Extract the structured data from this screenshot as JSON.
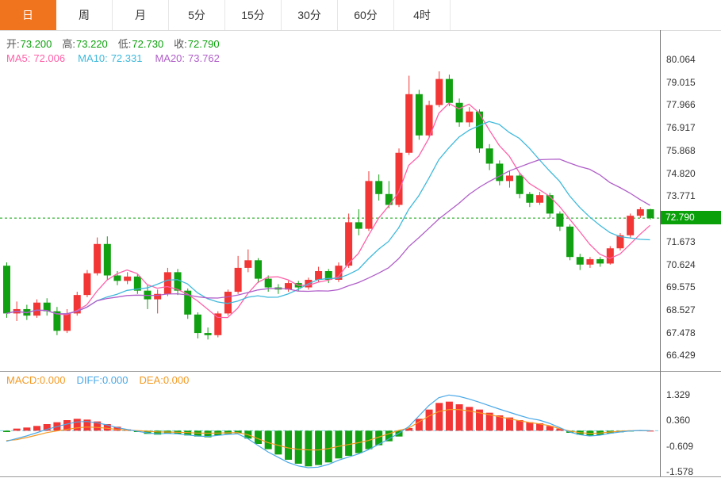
{
  "tabs": [
    {
      "label": "日",
      "active": true
    },
    {
      "label": "周",
      "active": false
    },
    {
      "label": "月",
      "active": false
    },
    {
      "label": "5分",
      "active": false
    },
    {
      "label": "15分",
      "active": false
    },
    {
      "label": "30分",
      "active": false
    },
    {
      "label": "60分",
      "active": false
    },
    {
      "label": "4时",
      "active": false
    }
  ],
  "ohlc_header": {
    "open_label": "开:",
    "open_value": "73.200",
    "high_label": "高:",
    "high_value": "73.220",
    "low_label": "低:",
    "low_value": "72.730",
    "close_label": "收:",
    "close_value": "72.790"
  },
  "ma_header": {
    "ma5_label": "MA5:",
    "ma5_value": "72.006",
    "ma10_label": "MA10:",
    "ma10_value": "72.331",
    "ma20_label": "MA20:",
    "ma20_value": "73.762"
  },
  "macd_header": {
    "macd_label": "MACD:",
    "macd_value": "0.000",
    "diff_label": "DIFF:",
    "diff_value": "0.000",
    "dea_label": "DEA:",
    "dea_value": "0.000"
  },
  "current_price_label": "72.790",
  "colors": {
    "accent_orange": "#f0731d",
    "up_red": "#f23535",
    "down_green": "#11a011",
    "price_line_green": "#0aa00a",
    "ma5_pink": "#ff60a8",
    "ma10_cyan": "#3fb9dc",
    "ma20_purple": "#b05fc9",
    "diff_blue": "#4aa8e8",
    "dea_orange": "#f59a23",
    "macd_zero_cyan": "#7fd4e8",
    "axis_text": "#333333"
  },
  "chart_data": [
    {
      "type": "candlestick",
      "timeframe": "日",
      "ylim": [
        65.75,
        81.45
      ],
      "y_ticks": [
        80.064,
        79.015,
        77.966,
        76.917,
        75.868,
        74.82,
        73.771,
        71.673,
        70.624,
        69.575,
        68.527,
        67.478,
        66.429
      ],
      "current_price": 72.79,
      "last_candle": {
        "open": 73.2,
        "high": 73.22,
        "low": 72.73,
        "close": 72.79
      },
      "overlays": [
        {
          "name": "MA5",
          "period": 5,
          "value": 72.006
        },
        {
          "name": "MA10",
          "period": 10,
          "value": 72.331
        },
        {
          "name": "MA20",
          "period": 20,
          "value": 73.762
        }
      ],
      "ohlc": [
        [
          70.6,
          70.75,
          68.2,
          68.4
        ],
        [
          68.4,
          68.95,
          68.05,
          68.6
        ],
        [
          68.6,
          68.8,
          68.1,
          68.3
        ],
        [
          68.3,
          69.05,
          68.2,
          68.9
        ],
        [
          68.9,
          69.1,
          68.3,
          68.5
        ],
        [
          68.5,
          68.7,
          67.4,
          67.6
        ],
        [
          67.6,
          68.6,
          67.5,
          68.4
        ],
        [
          68.4,
          69.4,
          68.3,
          69.25
        ],
        [
          69.25,
          70.4,
          69.15,
          70.25
        ],
        [
          70.25,
          71.9,
          70.15,
          71.6
        ],
        [
          71.6,
          71.95,
          69.95,
          70.15
        ],
        [
          70.15,
          70.35,
          69.7,
          69.9
        ],
        [
          69.9,
          70.3,
          69.75,
          70.1
        ],
        [
          70.1,
          70.2,
          69.3,
          69.45
        ],
        [
          69.45,
          69.7,
          68.6,
          69.05
        ],
        [
          69.05,
          69.5,
          68.4,
          69.3
        ],
        [
          69.3,
          70.5,
          69.2,
          70.3
        ],
        [
          70.3,
          70.45,
          69.25,
          69.45
        ],
        [
          69.45,
          69.55,
          68.15,
          68.35
        ],
        [
          68.35,
          68.45,
          67.25,
          67.5
        ],
        [
          67.5,
          67.75,
          67.2,
          67.4
        ],
        [
          67.4,
          68.5,
          67.3,
          68.4
        ],
        [
          68.4,
          69.5,
          68.3,
          69.4
        ],
        [
          69.4,
          71.05,
          69.3,
          70.5
        ],
        [
          70.5,
          71.35,
          70.3,
          70.85
        ],
        [
          70.85,
          70.95,
          69.8,
          70.0
        ],
        [
          70.0,
          70.15,
          69.4,
          69.6
        ],
        [
          69.6,
          69.75,
          69.3,
          69.5
        ],
        [
          69.5,
          69.9,
          69.4,
          69.8
        ],
        [
          69.8,
          69.9,
          69.45,
          69.6
        ],
        [
          69.6,
          70.05,
          69.5,
          69.95
        ],
        [
          69.95,
          70.55,
          69.85,
          70.35
        ],
        [
          70.35,
          70.45,
          69.8,
          69.95
        ],
        [
          69.95,
          70.75,
          69.85,
          70.6
        ],
        [
          70.6,
          73.0,
          70.5,
          72.6
        ],
        [
          72.6,
          73.2,
          72.0,
          72.3
        ],
        [
          72.3,
          74.95,
          72.2,
          74.5
        ],
        [
          74.5,
          74.8,
          73.6,
          73.9
        ],
        [
          73.9,
          74.5,
          73.25,
          73.4
        ],
        [
          73.4,
          76.0,
          73.3,
          75.8
        ],
        [
          75.8,
          79.35,
          75.7,
          78.5
        ],
        [
          78.5,
          78.7,
          76.4,
          76.6
        ],
        [
          76.6,
          78.2,
          76.5,
          78.0
        ],
        [
          78.0,
          79.55,
          77.9,
          79.2
        ],
        [
          79.2,
          79.4,
          77.95,
          78.1
        ],
        [
          78.1,
          78.3,
          77.0,
          77.2
        ],
        [
          77.2,
          77.9,
          77.0,
          77.7
        ],
        [
          77.7,
          77.8,
          75.8,
          76.0
        ],
        [
          76.0,
          76.2,
          75.0,
          75.3
        ],
        [
          75.3,
          75.45,
          74.3,
          74.5
        ],
        [
          74.5,
          74.95,
          74.2,
          74.75
        ],
        [
          74.75,
          74.85,
          73.7,
          73.9
        ],
        [
          73.9,
          74.0,
          73.3,
          73.5
        ],
        [
          73.5,
          74.0,
          73.4,
          73.85
        ],
        [
          73.85,
          73.95,
          72.8,
          73.0
        ],
        [
          73.0,
          73.1,
          72.2,
          72.4
        ],
        [
          72.4,
          72.5,
          70.85,
          71.0
        ],
        [
          71.0,
          71.15,
          70.4,
          70.65
        ],
        [
          70.65,
          71.0,
          70.5,
          70.9
        ],
        [
          70.9,
          71.0,
          70.55,
          70.7
        ],
        [
          70.7,
          71.5,
          70.65,
          71.4
        ],
        [
          71.4,
          72.1,
          71.3,
          72.0
        ],
        [
          72.0,
          73.0,
          71.9,
          72.9
        ],
        [
          72.9,
          73.3,
          72.8,
          73.2
        ],
        [
          73.2,
          73.22,
          72.73,
          72.79
        ]
      ]
    },
    {
      "type": "macd",
      "ylim": [
        -1.7,
        1.66
      ],
      "y_ticks": [
        1.329,
        0.36,
        -0.609,
        -1.578
      ],
      "values": {
        "macd": 0.0,
        "diff": 0.0,
        "dea": 0.0
      },
      "hist": [
        -0.05,
        0.08,
        0.12,
        0.18,
        0.25,
        0.32,
        0.4,
        0.45,
        0.42,
        0.35,
        0.25,
        0.15,
        0.05,
        -0.05,
        -0.12,
        -0.15,
        -0.1,
        -0.12,
        -0.18,
        -0.22,
        -0.25,
        -0.18,
        -0.12,
        -0.1,
        -0.3,
        -0.5,
        -0.7,
        -0.9,
        -1.1,
        -1.25,
        -1.35,
        -1.3,
        -1.2,
        -1.05,
        -0.95,
        -0.85,
        -0.7,
        -0.55,
        -0.4,
        -0.22,
        0.1,
        0.45,
        0.8,
        1.05,
        1.1,
        1.0,
        0.9,
        0.8,
        0.68,
        0.58,
        0.5,
        0.4,
        0.32,
        0.28,
        0.18,
        0.08,
        -0.08,
        -0.15,
        -0.2,
        -0.16,
        -0.1,
        -0.06,
        -0.02,
        0.02,
        0.0
      ],
      "diff": [
        -0.4,
        -0.3,
        -0.2,
        -0.08,
        0.05,
        0.15,
        0.25,
        0.33,
        0.35,
        0.3,
        0.22,
        0.12,
        0.05,
        -0.02,
        -0.08,
        -0.12,
        -0.1,
        -0.12,
        -0.16,
        -0.2,
        -0.22,
        -0.18,
        -0.14,
        -0.12,
        -0.3,
        -0.55,
        -0.8,
        -1.0,
        -1.2,
        -1.33,
        -1.4,
        -1.38,
        -1.28,
        -1.12,
        -1.0,
        -0.88,
        -0.72,
        -0.52,
        -0.32,
        -0.1,
        0.15,
        0.55,
        0.95,
        1.25,
        1.35,
        1.3,
        1.2,
        1.08,
        0.95,
        0.82,
        0.7,
        0.58,
        0.47,
        0.4,
        0.28,
        0.12,
        -0.05,
        -0.15,
        -0.2,
        -0.17,
        -0.1,
        -0.05,
        -0.01,
        0.01,
        0.0
      ],
      "dea": [
        -0.375,
        -0.34,
        -0.26,
        -0.17,
        -0.075,
        -0.01,
        0.05,
        0.105,
        0.14,
        0.125,
        0.095,
        0.045,
        0.025,
        0.005,
        -0.02,
        -0.045,
        -0.05,
        -0.06,
        -0.07,
        -0.09,
        -0.095,
        -0.09,
        -0.08,
        -0.07,
        -0.15,
        -0.3,
        -0.45,
        -0.55,
        -0.65,
        -0.705,
        -0.725,
        -0.73,
        -0.68,
        -0.595,
        -0.525,
        -0.455,
        -0.37,
        -0.245,
        -0.12,
        0.01,
        0.1,
        0.325,
        0.55,
        0.725,
        0.8,
        0.8,
        0.75,
        0.68,
        0.61,
        0.53,
        0.45,
        0.38,
        0.31,
        0.26,
        0.19,
        0.08,
        -0.01,
        -0.075,
        -0.1,
        -0.09,
        -0.05,
        -0.02,
        0.0,
        0.0,
        0.0
      ]
    }
  ]
}
